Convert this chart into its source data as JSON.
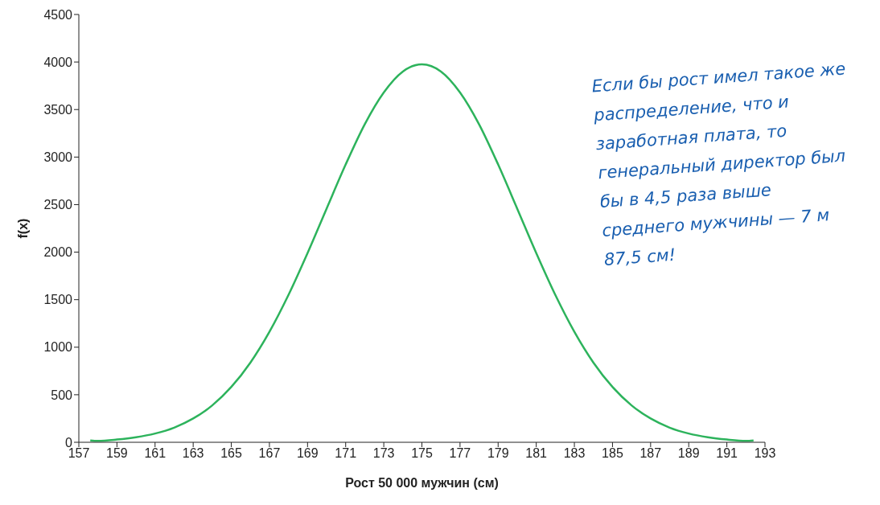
{
  "chart_data": {
    "type": "line",
    "xlabel": "Рост 50 000 мужчин (см)",
    "ylabel": "f(x)",
    "x": [
      157.6,
      158,
      159,
      160,
      161,
      162,
      163,
      164,
      165,
      166,
      167,
      168,
      169,
      170,
      171,
      172,
      173,
      174,
      175,
      176,
      177,
      178,
      179,
      180,
      181,
      182,
      183,
      184,
      185,
      186,
      187,
      188,
      189,
      190,
      191,
      192,
      192.4
    ],
    "series": [
      {
        "color": "#2db35c",
        "values": [
          20,
          15,
          29,
          53,
          92,
          154,
          250,
          388,
          582,
          838,
          1162,
          1550,
          1990,
          2458,
          2922,
          3345,
          3680,
          3900,
          3975,
          3900,
          3680,
          3345,
          2922,
          2458,
          1990,
          1550,
          1162,
          838,
          582,
          388,
          250,
          154,
          92,
          53,
          29,
          15,
          20
        ]
      }
    ],
    "xlim": [
      157,
      193
    ],
    "xticks": [
      157,
      159,
      161,
      163,
      165,
      167,
      169,
      171,
      173,
      175,
      177,
      179,
      181,
      183,
      185,
      187,
      189,
      191,
      193
    ],
    "ylim": [
      0,
      4500
    ],
    "yticks": [
      0,
      500,
      1000,
      1500,
      2000,
      2500,
      3000,
      3500,
      4000,
      4500
    ],
    "grid": false,
    "legend": false,
    "marker": "none",
    "line_style": "solid",
    "annotations": [
      "Если бы рост имел такое же распределение, что и заработная плата, то генеральный директор был бы в 4,5 раза выше среднего мужчины — 7 м 87,5 см!"
    ]
  }
}
